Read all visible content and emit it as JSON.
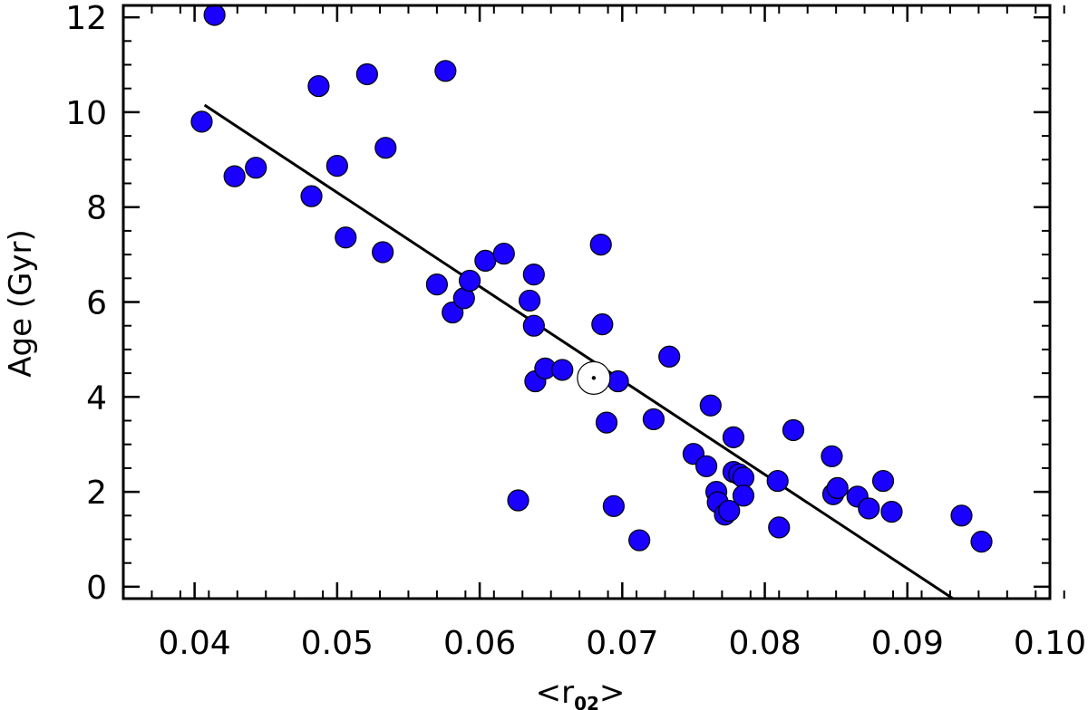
{
  "chart_data": {
    "type": "scatter",
    "title": "",
    "xlabel": {
      "open": "<r",
      "sub": "02",
      "close": ">"
    },
    "ylabel": "Age  (Gyr)",
    "xlim": [
      0.035,
      0.1
    ],
    "ylim": [
      -0.25,
      12.25
    ],
    "xticks": [
      "0.04",
      "0.05",
      "0.06",
      "0.07",
      "0.08",
      "0.09",
      "0.10"
    ],
    "xtick_values": [
      0.04,
      0.05,
      0.06,
      0.07,
      0.08,
      0.09,
      0.1
    ],
    "yticks": [
      "0",
      "2",
      "4",
      "6",
      "8",
      "10",
      "12"
    ],
    "ytick_values": [
      0,
      2,
      4,
      6,
      8,
      10,
      12
    ],
    "x_minor_step": 0.002,
    "y_minor_step": 0.5,
    "grid": false,
    "legend": "none",
    "marker_color": "#1a00ff",
    "marker_edge": "#000000",
    "fit_line": {
      "x": [
        0.0407,
        0.0932
      ],
      "y": [
        10.15,
        -0.25
      ],
      "color": "#000000"
    },
    "sun": {
      "x": 0.068,
      "y": 4.4
    },
    "points": [
      [
        0.0414,
        12.05
      ],
      [
        0.0405,
        9.8
      ],
      [
        0.0428,
        8.65
      ],
      [
        0.0443,
        8.83
      ],
      [
        0.0482,
        8.23
      ],
      [
        0.0487,
        10.55
      ],
      [
        0.05,
        8.87
      ],
      [
        0.0506,
        7.36
      ],
      [
        0.0521,
        10.8
      ],
      [
        0.0532,
        7.05
      ],
      [
        0.0534,
        9.25
      ],
      [
        0.057,
        6.37
      ],
      [
        0.0576,
        10.87
      ],
      [
        0.0581,
        5.78
      ],
      [
        0.0589,
        6.08
      ],
      [
        0.0593,
        6.45
      ],
      [
        0.0604,
        6.87
      ],
      [
        0.0617,
        7.02
      ],
      [
        0.0627,
        1.82
      ],
      [
        0.0635,
        6.03
      ],
      [
        0.0638,
        6.58
      ],
      [
        0.0638,
        5.5
      ],
      [
        0.0639,
        4.33
      ],
      [
        0.0646,
        4.6
      ],
      [
        0.0658,
        4.57
      ],
      [
        0.0685,
        7.21
      ],
      [
        0.0686,
        5.53
      ],
      [
        0.0689,
        3.46
      ],
      [
        0.0694,
        1.7
      ],
      [
        0.0697,
        4.33
      ],
      [
        0.0712,
        0.98
      ],
      [
        0.0722,
        3.53
      ],
      [
        0.0733,
        4.85
      ],
      [
        0.075,
        2.8
      ],
      [
        0.0759,
        2.54
      ],
      [
        0.0762,
        3.82
      ],
      [
        0.0766,
        2.0
      ],
      [
        0.0767,
        1.78
      ],
      [
        0.0772,
        1.52
      ],
      [
        0.0775,
        1.6
      ],
      [
        0.0778,
        2.42
      ],
      [
        0.0778,
        3.15
      ],
      [
        0.0782,
        2.37
      ],
      [
        0.0785,
        2.3
      ],
      [
        0.0785,
        1.92
      ],
      [
        0.0809,
        2.23
      ],
      [
        0.081,
        1.25
      ],
      [
        0.082,
        3.3
      ],
      [
        0.0847,
        2.75
      ],
      [
        0.0848,
        1.95
      ],
      [
        0.0851,
        2.08
      ],
      [
        0.0865,
        1.9
      ],
      [
        0.0873,
        1.65
      ],
      [
        0.0883,
        2.23
      ],
      [
        0.0889,
        1.58
      ],
      [
        0.0938,
        1.5
      ],
      [
        0.0952,
        0.95
      ]
    ]
  }
}
